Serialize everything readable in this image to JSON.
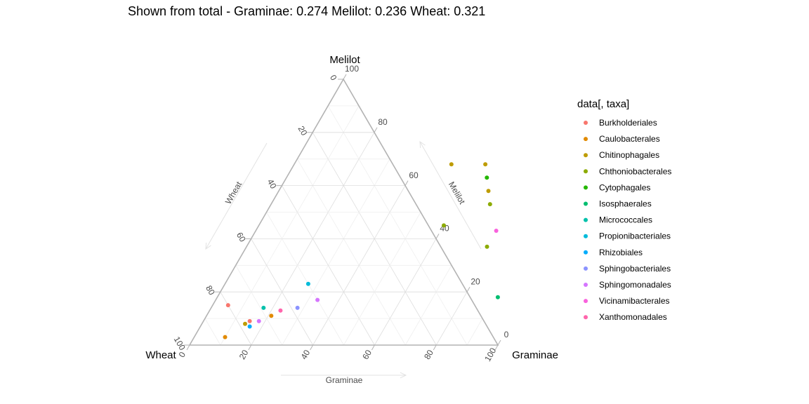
{
  "chart_data": {
    "type": "scatter",
    "subtype": "ternary",
    "title": "Shown from total - Graminae: 0.274  Melilot: 0.236  Wheat: 0.321",
    "corners": {
      "top": "Melilot",
      "left": "Wheat",
      "right": "Graminae"
    },
    "axis_titles": {
      "left": "Wheat",
      "right": "Melilot",
      "bottom": "Graminae"
    },
    "ticks": [
      "0",
      "20",
      "40",
      "60",
      "80",
      "100"
    ],
    "tick_labels": {
      "left": [
        "0",
        "20",
        "40",
        "60",
        "80",
        "100"
      ],
      "right": [
        "0",
        "20",
        "40",
        "60",
        "80",
        "100"
      ],
      "bottom": [
        "0",
        "20",
        "40",
        "60",
        "80",
        "100"
      ]
    },
    "grid": true,
    "legend_title": "data[, taxa]",
    "legend_position": "right",
    "series": [
      {
        "name": "Burkholderiales",
        "color": "#F8766D",
        "points": [
          {
            "graminae": 5,
            "melilot": 15,
            "wheat": 80
          },
          {
            "graminae": 15,
            "melilot": 9,
            "wheat": 76
          }
        ]
      },
      {
        "name": "Caulobacterales",
        "color": "#E18A00",
        "points": [
          {
            "graminae": 10,
            "melilot": 3,
            "wheat": 87
          },
          {
            "graminae": 21,
            "melilot": 11,
            "wheat": 68
          }
        ]
      },
      {
        "name": "Chitinophagales",
        "color": "#BE9C00",
        "points": [
          {
            "graminae": 51,
            "melilot": 68,
            "wheat": -19
          },
          {
            "graminae": 62,
            "melilot": 68,
            "wheat": -30
          },
          {
            "graminae": 68,
            "melilot": 58,
            "wheat": -26
          },
          {
            "graminae": 14,
            "melilot": 8,
            "wheat": 78
          }
        ]
      },
      {
        "name": "Chthoniobacterales",
        "color": "#8CAB00",
        "points": [
          {
            "graminae": 71,
            "melilot": 53,
            "wheat": -24
          },
          {
            "graminae": 60,
            "melilot": 45,
            "wheat": -5
          },
          {
            "graminae": 78,
            "melilot": 37,
            "wheat": -15
          }
        ]
      },
      {
        "name": "Cytophagales",
        "color": "#24B700",
        "points": [
          {
            "graminae": 65,
            "melilot": 63,
            "wheat": -28
          }
        ]
      },
      {
        "name": "Isosphaerales",
        "color": "#00BE70",
        "points": [
          {
            "graminae": 91,
            "melilot": 18,
            "wheat": -9
          }
        ]
      },
      {
        "name": "Micrococcales",
        "color": "#00C1AB",
        "points": [
          {
            "graminae": 17,
            "melilot": 14,
            "wheat": 69
          }
        ]
      },
      {
        "name": "Propionibacteriales",
        "color": "#00BBDA",
        "points": [
          {
            "graminae": 27,
            "melilot": 23,
            "wheat": 50
          }
        ]
      },
      {
        "name": "Rhizobiales",
        "color": "#00ACFC",
        "points": [
          {
            "graminae": 16,
            "melilot": 7,
            "wheat": 77
          }
        ]
      },
      {
        "name": "Sphingobacteriales",
        "color": "#8B93FF",
        "points": [
          {
            "graminae": 28,
            "melilot": 14,
            "wheat": 58
          }
        ]
      },
      {
        "name": "Sphingomonadales",
        "color": "#D575FE",
        "points": [
          {
            "graminae": 33,
            "melilot": 17,
            "wheat": 50
          },
          {
            "graminae": 18,
            "melilot": 9,
            "wheat": 73
          }
        ]
      },
      {
        "name": "Vicinamibacterales",
        "color": "#F962DD",
        "points": [
          {
            "graminae": 78,
            "melilot": 43,
            "wheat": -21
          }
        ]
      },
      {
        "name": "Xanthomonadales",
        "color": "#FF65AC",
        "points": [
          {
            "graminae": 23,
            "melilot": 13,
            "wheat": 64
          }
        ]
      }
    ]
  }
}
